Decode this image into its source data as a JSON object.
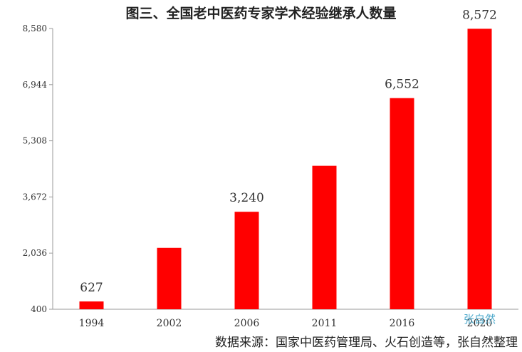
{
  "chart_data": {
    "type": "bar",
    "title": "图三、全国老中医药专家学术经验继承人数量",
    "categories": [
      "1994",
      "2002",
      "2006",
      "2011",
      "2016",
      "2020"
    ],
    "values": [
      627,
      2190,
      3240,
      4580,
      6552,
      8572
    ],
    "data_labels": [
      "627",
      "",
      "3,240",
      "",
      "6,552",
      "8,572"
    ],
    "ylim": [
      400,
      8580
    ],
    "yticks": [
      "400",
      "2,036",
      "3,672",
      "5,308",
      "6,944",
      "8,580"
    ],
    "bar_color": "#ff0000",
    "grid": false,
    "legend": "none"
  },
  "watermark": "张自然",
  "source_note": "数据来源：国家中医药管理局、火石创造等，张自然整理"
}
